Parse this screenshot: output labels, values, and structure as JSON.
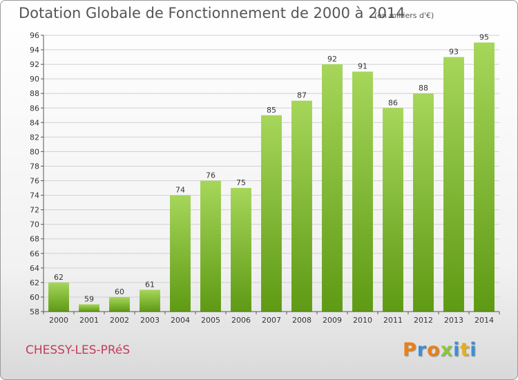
{
  "header": {
    "title": "Dotation Globale de Fonctionnement de 2000 à 2014",
    "subtitle": "(en milliers d'€)"
  },
  "footer": {
    "commune": "CHESSY-LES-PRéS",
    "logo_text": "Proxiti",
    "logo_colors": [
      "#e8801a",
      "#3a8fd6",
      "#e8801a",
      "#8cc63f",
      "#3a8fd6",
      "#e0b020",
      "#3a8fd6"
    ]
  },
  "chart_data": {
    "type": "bar",
    "title": "Dotation Globale de Fonctionnement de 2000 à 2014",
    "subtitle": "(en milliers d'€)",
    "categories": [
      "2000",
      "2001",
      "2002",
      "2003",
      "2004",
      "2005",
      "2006",
      "2007",
      "2008",
      "2009",
      "2010",
      "2011",
      "2012",
      "2013",
      "2014"
    ],
    "values": [
      62,
      59,
      60,
      61,
      74,
      76,
      75,
      85,
      87,
      92,
      91,
      86,
      88,
      93,
      95
    ],
    "ylim": [
      58,
      96
    ],
    "yticks": [
      58,
      60,
      62,
      64,
      66,
      68,
      70,
      72,
      74,
      76,
      78,
      80,
      82,
      84,
      86,
      88,
      90,
      92,
      94,
      96
    ],
    "grid": true,
    "legend": "none",
    "bar_color_top": "#a6d65a",
    "bar_color_bottom": "#5e9a14"
  }
}
